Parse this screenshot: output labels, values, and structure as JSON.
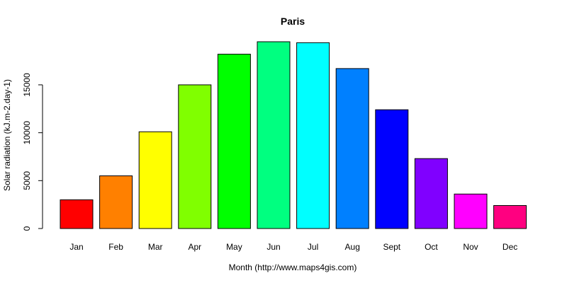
{
  "chart_data": {
    "type": "bar",
    "title": "Paris",
    "xlabel": "Month (http://www.maps4gis.com)",
    "ylabel": "Solar radiation (kJ.m-2.day-1)",
    "categories": [
      "Jan",
      "Feb",
      "Mar",
      "Apr",
      "May",
      "Jun",
      "Jul",
      "Aug",
      "Sept",
      "Oct",
      "Nov",
      "Dec"
    ],
    "values": [
      3000,
      5500,
      10100,
      15000,
      18200,
      19500,
      19400,
      16700,
      12400,
      7300,
      3600,
      2400
    ],
    "colors": [
      "#ff0000",
      "#ff8000",
      "#ffff00",
      "#80ff00",
      "#00ff00",
      "#00ff80",
      "#00ffff",
      "#0080ff",
      "#0000ff",
      "#8000ff",
      "#ff00ff",
      "#ff0080"
    ],
    "y_ticks": [
      0,
      5000,
      10000,
      15000
    ],
    "ylim": [
      0,
      19500
    ],
    "grid": false,
    "legend": "none"
  }
}
